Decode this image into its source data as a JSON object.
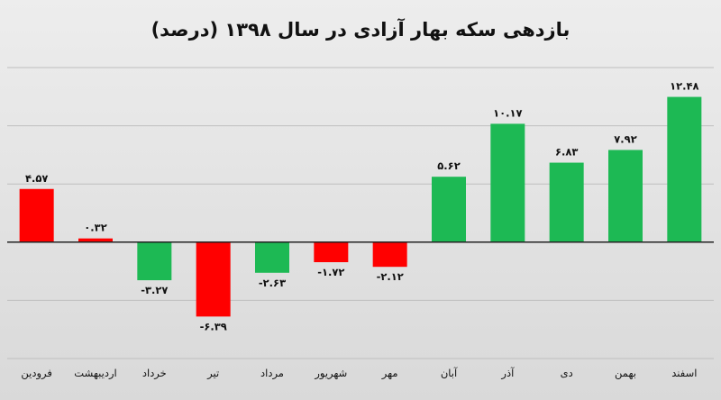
{
  "chart_data": {
    "type": "bar",
    "title": "بازدهی سکه بهار آزادی در سال ۱۳۹۸ (درصد)",
    "categories": [
      "فرودین",
      "اردیبهشت",
      "خرداد",
      "تیر",
      "مرداد",
      "شهریور",
      "مهر",
      "آبان",
      "آذر",
      "دی",
      "بهمن",
      "اسفند"
    ],
    "values": [
      4.57,
      0.32,
      -3.27,
      -6.39,
      -2.63,
      -1.72,
      -2.12,
      5.62,
      10.17,
      6.83,
      7.92,
      12.48
    ],
    "data_labels": [
      "۴.۵۷",
      "۰.۳۲",
      "-۳.۲۷",
      "-۶.۳۹",
      "-۲.۶۳",
      "-۱.۷۲",
      "-۲.۱۲",
      "۵.۶۲",
      "۱۰.۱۷",
      "۶.۸۳",
      "۷.۹۲",
      "۱۲.۴۸"
    ],
    "colors": [
      "#ff0000",
      "#ff0000",
      "#1db954",
      "#ff0000",
      "#1db954",
      "#ff0000",
      "#ff0000",
      "#1db954",
      "#1db954",
      "#1db954",
      "#1db954",
      "#1db954"
    ],
    "ylim": [
      -10,
      15
    ],
    "grid": true,
    "legend": "none",
    "xlabel": "",
    "ylabel": ""
  }
}
